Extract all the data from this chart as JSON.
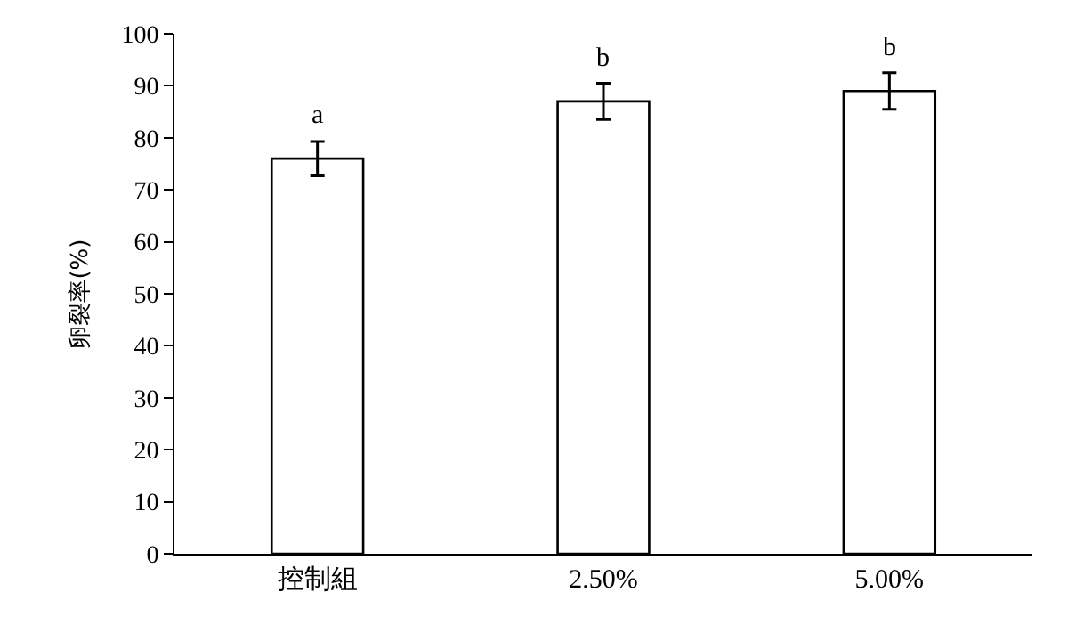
{
  "chart_data": {
    "type": "bar",
    "ylabel": "卵裂率(%)",
    "categories": [
      "控制組",
      "2.50%",
      "5.00%"
    ],
    "values": [
      76,
      87,
      89
    ],
    "errors": [
      3.3,
      3.5,
      3.5
    ],
    "color": "#ffffff",
    "ylim": [
      0,
      100
    ],
    "yticks": [
      0,
      10,
      20,
      30,
      40,
      50,
      60,
      70,
      80,
      90,
      100
    ],
    "annotations": [
      "a",
      "b",
      "b"
    ]
  }
}
